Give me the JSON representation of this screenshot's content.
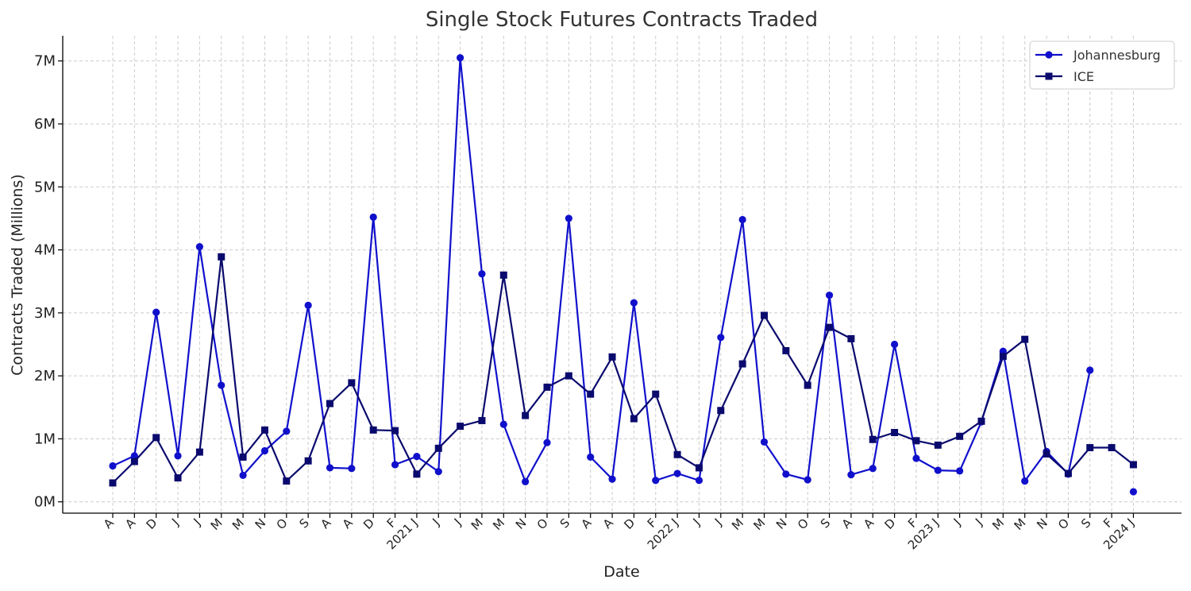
{
  "chart_data": {
    "type": "line",
    "title": "Single Stock Futures Contracts Traded",
    "xlabel": "Date",
    "ylabel": "Contracts Traded (Millions)",
    "ylim": [
      -0.18,
      7.4
    ],
    "yticks": [
      0,
      1,
      2,
      3,
      4,
      5,
      6,
      7
    ],
    "ytick_labels": [
      "0M",
      "1M",
      "2M",
      "3M",
      "4M",
      "5M",
      "6M",
      "7M"
    ],
    "grid": true,
    "legend_position": "top-right",
    "categories": [
      "A",
      "A",
      "D",
      "J",
      "J",
      "M",
      "M",
      "N",
      "O",
      "S",
      "A",
      "A",
      "D",
      "F",
      "2021 J",
      "J",
      "J",
      "M",
      "M",
      "N",
      "O",
      "S",
      "A",
      "A",
      "D",
      "F",
      "2022 J",
      "J",
      "J",
      "M",
      "M",
      "N",
      "O",
      "S",
      "A",
      "A",
      "D",
      "F",
      "2023 J",
      "J",
      "J",
      "M",
      "M",
      "N",
      "O",
      "S",
      "F",
      "2024 J"
    ],
    "series": [
      {
        "name": "Johannesburg",
        "color": "#1010cc",
        "marker": "circle",
        "values": [
          0.57,
          0.73,
          3.01,
          0.73,
          4.05,
          1.85,
          0.42,
          0.81,
          1.12,
          3.12,
          0.54,
          0.53,
          4.52,
          0.59,
          0.72,
          0.48,
          7.05,
          3.62,
          1.23,
          0.32,
          0.94,
          4.5,
          0.71,
          0.36,
          3.16,
          0.34,
          0.45,
          0.34,
          2.61,
          4.48,
          0.95,
          0.44,
          0.35,
          3.28,
          0.43,
          0.53,
          2.5,
          0.69,
          0.5,
          0.49,
          1.27,
          2.39,
          0.33,
          0.8,
          0.44,
          2.09,
          null,
          0.16
        ]
      },
      {
        "name": "ICE",
        "color": "#0a0a6e",
        "marker": "square",
        "values": [
          0.3,
          0.64,
          1.02,
          0.38,
          0.79,
          3.89,
          0.71,
          1.14,
          0.33,
          0.65,
          1.56,
          1.89,
          1.14,
          1.13,
          0.44,
          0.85,
          1.2,
          1.29,
          3.6,
          1.37,
          1.82,
          2.0,
          1.71,
          2.3,
          1.32,
          1.71,
          0.75,
          0.54,
          1.45,
          2.19,
          2.96,
          2.4,
          1.85,
          2.77,
          2.59,
          0.99,
          1.1,
          0.97,
          0.9,
          1.04,
          1.28,
          2.31,
          2.58,
          0.76,
          0.45,
          0.86,
          0.86,
          0.59
        ]
      }
    ]
  }
}
